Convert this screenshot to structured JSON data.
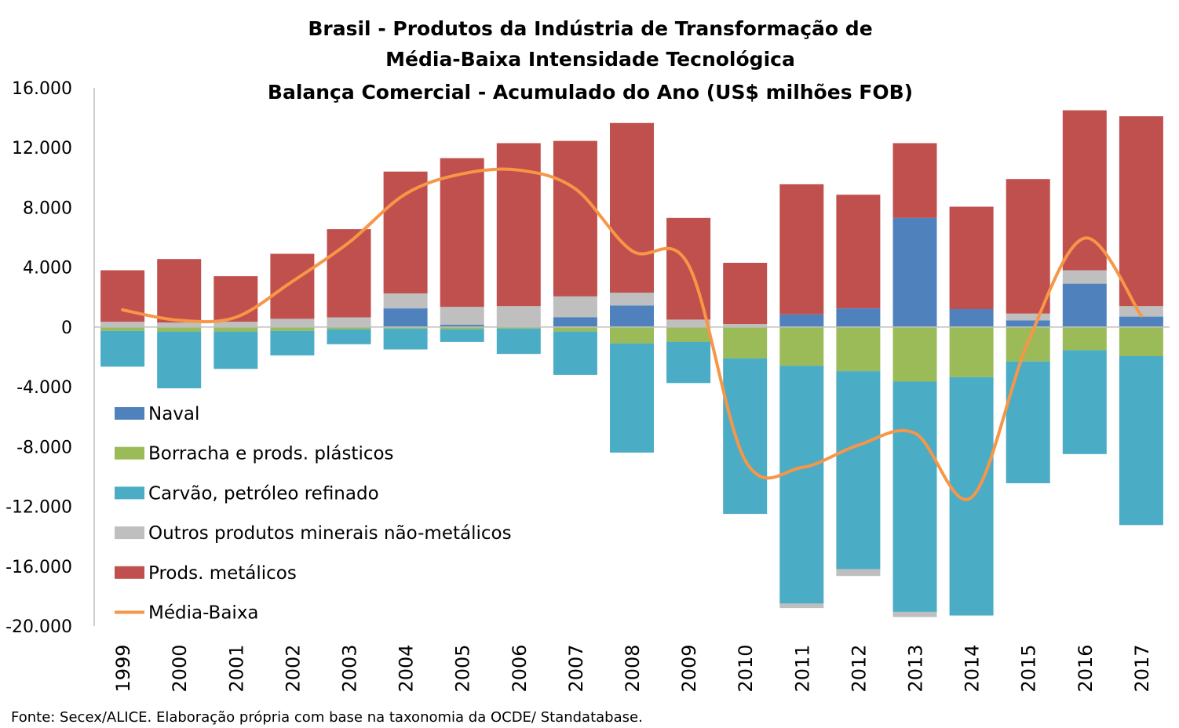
{
  "chart_data": {
    "type": "bar",
    "stacked": true,
    "title": [
      "Brasil - Produtos da Indústria de Transformação de",
      "Média-Baixa Intensidade Tecnológica",
      "Balança Comercial - Acumulado do Ano (US$ milhões FOB)"
    ],
    "source": "Fonte: Secex/ALICE. Elaboração própria com base na taxonomia da OCDE/ Standatabase.",
    "categories": [
      "1999",
      "2000",
      "2001",
      "2002",
      "2003",
      "2004",
      "2005",
      "2006",
      "2007",
      "2008",
      "2009",
      "2010",
      "2011",
      "2012",
      "2013",
      "2014",
      "2015",
      "2016",
      "2017"
    ],
    "ylim": [
      -20000,
      16000
    ],
    "yticks": [
      16000,
      12000,
      8000,
      4000,
      0,
      -4000,
      -8000,
      -12000,
      -16000,
      -20000
    ],
    "ytick_labels": [
      "16.000",
      "12.000",
      "8.000",
      "4.000",
      "0",
      "-4.000",
      "-8.000",
      "-12.000",
      "-16.000",
      "-20.000"
    ],
    "series": [
      {
        "name": "Naval",
        "color": "#4f81bd",
        "values": [
          0,
          0,
          0,
          0,
          0,
          1250,
          150,
          0,
          650,
          1450,
          0,
          0,
          850,
          1250,
          7300,
          1200,
          450,
          2900,
          700
        ]
      },
      {
        "name": "Borracha e prods. plásticos",
        "color": "#9bbb59",
        "values": [
          -250,
          -300,
          -300,
          -250,
          -150,
          -100,
          -150,
          -100,
          -300,
          -1100,
          -1000,
          -2100,
          -2600,
          -2950,
          -3650,
          -3350,
          -2300,
          -1550,
          -1950
        ]
      },
      {
        "name": "Carvão, petróleo refinado",
        "color": "#4bacc6",
        "values": [
          -2400,
          -3800,
          -2500,
          -1650,
          -1000,
          -1400,
          -850,
          -1700,
          -2900,
          -7300,
          -2750,
          -10400,
          -15900,
          -13250,
          -15400,
          -15950,
          -8150,
          -6950,
          -11300
        ]
      },
      {
        "name": "Outros produtos minerais não-metálicos",
        "color": "#bfbfbf",
        "values": [
          350,
          300,
          350,
          550,
          650,
          1000,
          1200,
          1400,
          1400,
          850,
          500,
          200,
          -300,
          -450,
          -350,
          0,
          450,
          900,
          700
        ]
      },
      {
        "name": "Prods. metálicos",
        "color": "#c0504d",
        "values": [
          3450,
          4250,
          3050,
          4350,
          5900,
          8150,
          9950,
          10900,
          10400,
          11350,
          6800,
          4100,
          8700,
          7600,
          5000,
          6850,
          9000,
          10700,
          12700
        ]
      }
    ],
    "line": {
      "name": "Média-Baixa",
      "color": "#f79646",
      "values": [
        1150,
        450,
        650,
        3050,
        5650,
        8900,
        10250,
        10500,
        9250,
        5100,
        4150,
        -8900,
        -9400,
        -7900,
        -7100,
        -11400,
        -1000,
        5950,
        750
      ]
    }
  }
}
